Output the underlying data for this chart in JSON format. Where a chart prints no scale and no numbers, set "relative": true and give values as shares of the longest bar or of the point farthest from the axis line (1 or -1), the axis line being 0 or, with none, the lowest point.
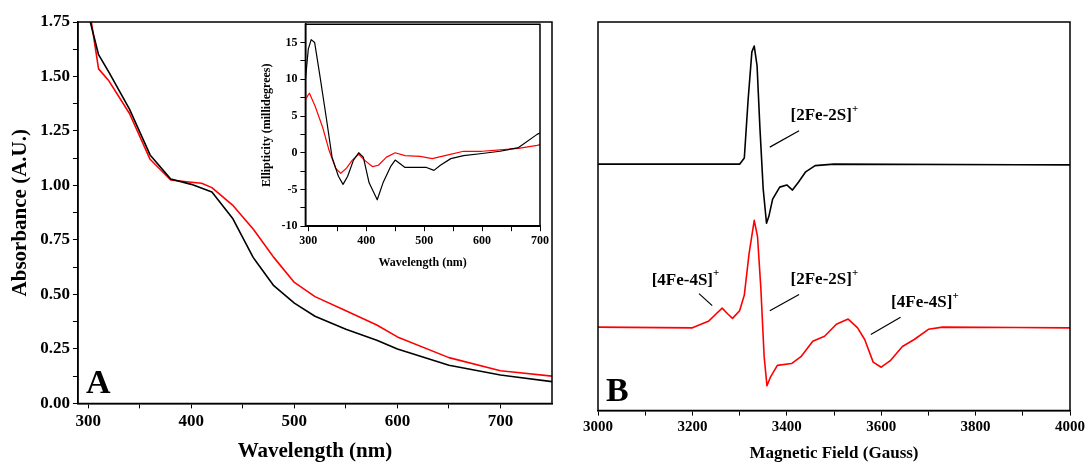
{
  "chart_data": [
    {
      "type": "line",
      "xlabel": "Wavelength (nm)",
      "ylabel": "Absorbance (A.U.)",
      "annotations": [
        "A"
      ],
      "xlim": [
        290,
        750
      ],
      "ylim": [
        0,
        1.75
      ],
      "xticks": [
        300,
        {
          "value": 350,
          "label": null
        },
        400,
        {
          "value": 450,
          "label": null
        },
        500,
        {
          "value": 550,
          "label": null
        },
        600,
        {
          "value": 650,
          "label": null
        },
        700
      ],
      "yticks": [
        {
          "value": 0,
          "label": "0.00"
        },
        {
          "value": 0.125,
          "label": null
        },
        {
          "value": 0.25,
          "label": "0.25"
        },
        {
          "value": 0.375,
          "label": null
        },
        {
          "value": 0.5,
          "label": "0.50"
        },
        {
          "value": 0.625,
          "label": null
        },
        {
          "value": 0.75,
          "label": "0.75"
        },
        {
          "value": 0.875,
          "label": null
        },
        {
          "value": 1,
          "label": "1.00"
        },
        {
          "value": 1.125,
          "label": null
        },
        {
          "value": 1.25,
          "label": "1.25"
        },
        {
          "value": 1.375,
          "label": null
        },
        {
          "value": 1.5,
          "label": "1.50"
        },
        {
          "value": 1.625,
          "label": null
        },
        {
          "value": 1.75,
          "label": "1.75"
        }
      ],
      "series": [
        {
          "color": "#000000",
          "x": [
            302,
            310,
            320,
            340,
            360,
            380,
            400,
            420,
            440,
            460,
            480,
            500,
            520,
            550,
            580,
            600,
            650,
            700,
            750
          ],
          "values": [
            1.75,
            1.6,
            1.52,
            1.35,
            1.14,
            1.03,
            1.005,
            0.97,
            0.85,
            0.67,
            0.54,
            0.46,
            0.4,
            0.34,
            0.29,
            0.25,
            0.175,
            0.13,
            0.1
          ]
        },
        {
          "color": "#ff0000",
          "x": [
            303,
            310,
            320,
            340,
            360,
            380,
            400,
            410,
            420,
            440,
            460,
            480,
            500,
            520,
            550,
            580,
            600,
            650,
            700,
            750
          ],
          "values": [
            1.75,
            1.535,
            1.48,
            1.33,
            1.12,
            1.025,
            1.015,
            1.01,
            0.99,
            0.91,
            0.8,
            0.67,
            0.555,
            0.49,
            0.425,
            0.36,
            0.305,
            0.21,
            0.15,
            0.125
          ]
        }
      ]
    },
    {
      "type": "line",
      "xlabel": "Wavelength (nm)",
      "ylabel": "Ellipticity (millidegrees)",
      "xlim": [
        295,
        700
      ],
      "ylim": [
        -10,
        17.5
      ],
      "xticks": [
        300,
        {
          "value": 350,
          "label": null
        },
        400,
        {
          "value": 450,
          "label": null
        },
        500,
        {
          "value": 550,
          "label": null
        },
        600,
        {
          "value": 650,
          "label": null
        },
        700
      ],
      "yticks": [
        -10,
        {
          "value": -7.5,
          "label": null
        },
        -5,
        {
          "value": -2.5,
          "label": null
        },
        0,
        {
          "value": 2.5,
          "label": null
        },
        5,
        {
          "value": 7.5,
          "label": null
        },
        10,
        {
          "value": 12.5,
          "label": null
        },
        15
      ],
      "series": [
        {
          "color": "#000000",
          "x": [
            295,
            300,
            305,
            311,
            320,
            331,
            341,
            352,
            360,
            368,
            378,
            387,
            395,
            405,
            419,
            429,
            442,
            450,
            467,
            488,
            504,
            517,
            528,
            546,
            568,
            600,
            631,
            663,
            695,
            700
          ],
          "values": [
            9.9,
            14.1,
            15.4,
            15,
            10.5,
            4.8,
            -0.6,
            -3.2,
            -4.3,
            -3.2,
            -1,
            0,
            -0.6,
            -4.1,
            -6.4,
            -4.1,
            -1.9,
            -1,
            -2,
            -2,
            -2,
            -2.4,
            -1.7,
            -0.8,
            -0.4,
            -0.1,
            0.2,
            0.7,
            2.5,
            2.7
          ]
        },
        {
          "color": "#ff0000",
          "x": [
            295,
            300,
            302,
            312,
            325,
            336,
            347,
            356,
            366,
            376,
            387,
            397,
            411,
            421,
            435,
            450,
            467,
            493,
            514,
            536,
            568,
            600,
            631,
            663,
            695,
            700
          ],
          "values": [
            7.2,
            7.9,
            8.1,
            6.3,
            3.4,
            0.3,
            -2.1,
            -2.8,
            -2.1,
            -1,
            -0.2,
            -1,
            -1.9,
            -1.7,
            -0.6,
            0,
            -0.4,
            -0.5,
            -0.8,
            -0.4,
            0.2,
            0.2,
            0.4,
            0.6,
            1,
            1.1
          ]
        }
      ]
    },
    {
      "type": "line",
      "relative": true,
      "xlabel": "Magnetic Field (Gauss)",
      "xlim": [
        3000,
        4000
      ],
      "xticks": [
        3000,
        {
          "value": 3100,
          "label": null
        },
        3200,
        {
          "value": 3300,
          "label": null
        },
        3400,
        {
          "value": 3500,
          "label": null
        },
        3600,
        {
          "value": 3700,
          "label": null
        },
        3800,
        {
          "value": 3900,
          "label": null
        },
        4000
      ],
      "annotations": [
        "B",
        "[2Fe-2S]$^{+}$",
        "[4Fe-4S]$^{+}$",
        "[2Fe-2S]$^{+}$",
        "[4Fe-4S]$^{+}$"
      ],
      "series": [
        {
          "color": "#000000",
          "x": [
            3000,
            3300,
            3310,
            3318,
            3326,
            3331,
            3337,
            3343,
            3350,
            3357,
            3362,
            3370,
            3385,
            3400,
            3412,
            3425,
            3440,
            3460,
            3500,
            4000
          ],
          "values": [
            0.676,
            0.676,
            0.693,
            0.852,
            0.984,
            1,
            0.946,
            0.777,
            0.608,
            0.514,
            0.533,
            0.58,
            0.613,
            0.619,
            0.605,
            0.627,
            0.655,
            0.672,
            0.676,
            0.674
          ]
        },
        {
          "color": "#ff0000",
          "x": [
            3000,
            3200,
            3235,
            3250,
            3263,
            3275,
            3285,
            3300,
            3310,
            3320,
            3331,
            3338,
            3345,
            3352,
            3358,
            3365,
            3380,
            3410,
            3430,
            3455,
            3480,
            3505,
            3530,
            3550,
            3565,
            3583,
            3600,
            3620,
            3645,
            3670,
            3700,
            3730,
            4000
          ],
          "values": [
            0.229,
            0.227,
            0.246,
            0.265,
            0.281,
            0.265,
            0.253,
            0.274,
            0.317,
            0.43,
            0.522,
            0.477,
            0.336,
            0.148,
            0.068,
            0.091,
            0.124,
            0.129,
            0.148,
            0.19,
            0.204,
            0.237,
            0.251,
            0.227,
            0.195,
            0.133,
            0.119,
            0.138,
            0.176,
            0.195,
            0.223,
            0.229,
            0.227
          ]
        }
      ]
    }
  ]
}
